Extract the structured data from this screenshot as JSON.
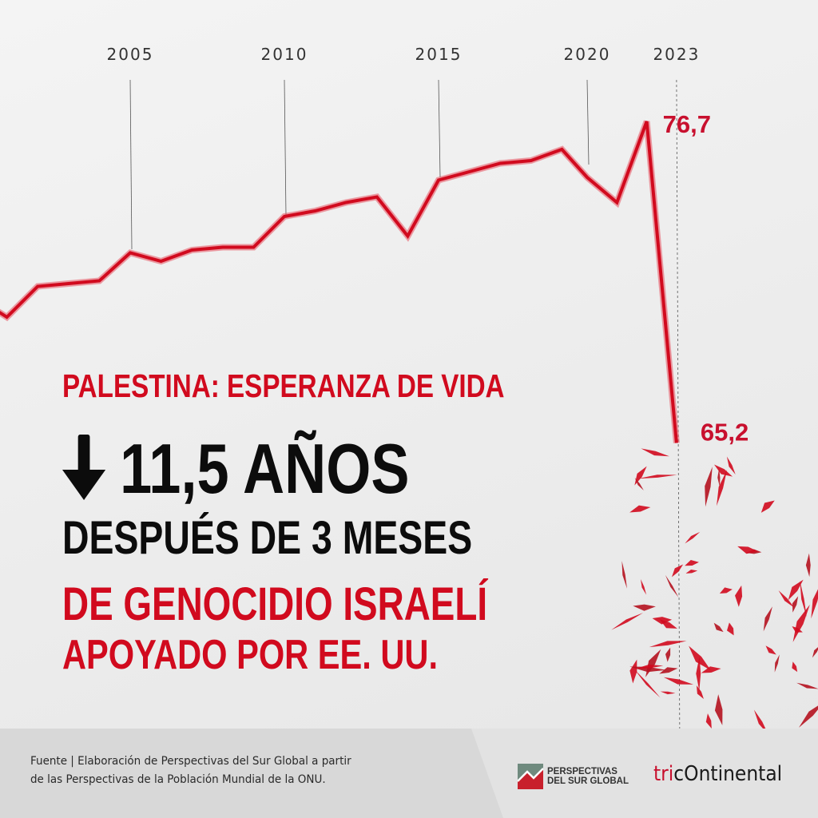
{
  "chart_data": {
    "type": "line",
    "title": "PALESTINA: ESPERANZA DE VIDA",
    "xlabel": "",
    "ylabel": "",
    "x_ticks": [
      "2005",
      "2010",
      "2015",
      "2020",
      "2023"
    ],
    "x": [
      2000,
      2001,
      2002,
      2003,
      2004,
      2005,
      2006,
      2007,
      2008,
      2009,
      2010,
      2011,
      2012,
      2013,
      2014,
      2015,
      2016,
      2017,
      2018,
      2019,
      2020,
      2021,
      2022,
      2023
    ],
    "series": [
      {
        "values": [
          70.4,
          69.7,
          70.8,
          70.9,
          71.0,
          72.0,
          71.7,
          72.1,
          72.2,
          72.2,
          73.3,
          73.5,
          73.8,
          74.0,
          72.6,
          74.6,
          74.9,
          75.2,
          75.3,
          75.7,
          74.7,
          73.8,
          76.7,
          65.2
        ],
        "color": "#d10a1e"
      }
    ],
    "data_labels": [
      {
        "x": 2022,
        "text": "76,7"
      },
      {
        "x": 2023,
        "text": "65,2"
      }
    ],
    "grid": false,
    "legend": "none"
  },
  "headline": {
    "line1": "PALESTINA: ESPERANZA DE VIDA",
    "line2": "11,5 AÑOS",
    "line2_icon": "down-arrow-icon",
    "line3": "DESPUÉS DE 3 MESES",
    "line4": "DE GENOCIDIO ISRAELÍ",
    "line5": "APOYADO POR EE. UU."
  },
  "footer": {
    "source_line1": "Fuente | Elaboración de Perspectivas del Sur Global a partir",
    "source_line2": "de las Perspectivas de la Población Mundial de la ONU.",
    "logo1_line1": "PERSPECTIVAS",
    "logo1_line2": "DEL SUR GLOBAL",
    "logo2_prefix": "tri",
    "logo2_rest": "ntinental"
  },
  "colors": {
    "accent": "#d10a1e",
    "text": "#0c0c0c",
    "footer": "#d8d8d8"
  }
}
